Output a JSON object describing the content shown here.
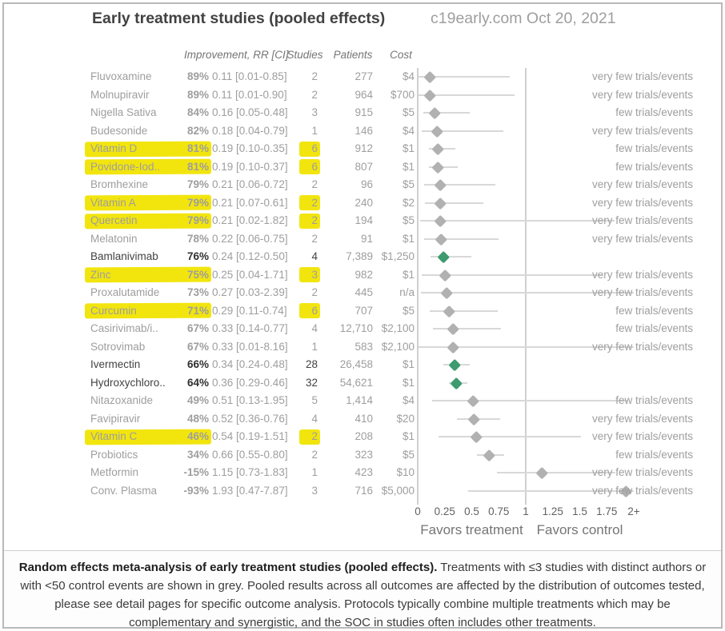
{
  "header": {
    "title": "Early treatment studies (pooled effects)",
    "site_date": "c19early.com Oct 20, 2021"
  },
  "columns": {
    "improvement": "Improvement, RR [CI]",
    "studies": "Studies",
    "patients": "Patients",
    "cost": "Cost"
  },
  "colors": {
    "highlight_yellow": "#f2e50e",
    "diamond_grey": "#b1b1b1",
    "diamond_green": "#3d9b6f",
    "grey_text": "#9e9e9e",
    "dark_text": "#424242"
  },
  "chart_data": {
    "type": "forest",
    "x_ticks": [
      "0",
      "0.25",
      "0.5",
      "0.75",
      "1",
      "1.25",
      "1.5",
      "1.75",
      "2+"
    ],
    "x_range": [
      0,
      2
    ],
    "favors_left": "Favors treatment",
    "favors_right": "Favors control",
    "rows": [
      {
        "name": "Fluvoxamine",
        "pct": "89%",
        "ci": "0.11 [0.01-0.85]",
        "rr": 0.11,
        "lo": 0.01,
        "hi": 0.85,
        "studies": "2",
        "patients": "277",
        "cost": "$4",
        "note": "very few trials/events",
        "hl_name": false,
        "hl_studies": false,
        "dark": false
      },
      {
        "name": "Molnupiravir",
        "pct": "89%",
        "ci": "0.11 [0.01-0.90]",
        "rr": 0.11,
        "lo": 0.01,
        "hi": 0.9,
        "studies": "2",
        "patients": "964",
        "cost": "$700",
        "note": "very few trials/events",
        "hl_name": false,
        "hl_studies": false,
        "dark": false
      },
      {
        "name": "Nigella Sativa",
        "pct": "84%",
        "ci": "0.16 [0.05-0.48]",
        "rr": 0.16,
        "lo": 0.05,
        "hi": 0.48,
        "studies": "3",
        "patients": "915",
        "cost": "$5",
        "note": "few trials/events",
        "hl_name": false,
        "hl_studies": false,
        "dark": false
      },
      {
        "name": "Budesonide",
        "pct": "82%",
        "ci": "0.18 [0.04-0.79]",
        "rr": 0.18,
        "lo": 0.04,
        "hi": 0.79,
        "studies": "1",
        "patients": "146",
        "cost": "$4",
        "note": "very few trials/events",
        "hl_name": false,
        "hl_studies": false,
        "dark": false
      },
      {
        "name": "Vitamin D",
        "pct": "81%",
        "ci": "0.19 [0.10-0.35]",
        "rr": 0.19,
        "lo": 0.1,
        "hi": 0.35,
        "studies": "6",
        "patients": "912",
        "cost": "$1",
        "note": "few trials/events",
        "hl_name": true,
        "hl_studies": true,
        "dark": false
      },
      {
        "name": "Povidone-Iod..",
        "pct": "81%",
        "ci": "0.19 [0.10-0.37]",
        "rr": 0.19,
        "lo": 0.1,
        "hi": 0.37,
        "studies": "6",
        "patients": "807",
        "cost": "$1",
        "note": "few trials/events",
        "hl_name": true,
        "hl_studies": true,
        "dark": false
      },
      {
        "name": "Bromhexine",
        "pct": "79%",
        "ci": "0.21 [0.06-0.72]",
        "rr": 0.21,
        "lo": 0.06,
        "hi": 0.72,
        "studies": "2",
        "patients": "96",
        "cost": "$5",
        "note": "very few trials/events",
        "hl_name": false,
        "hl_studies": false,
        "dark": false
      },
      {
        "name": "Vitamin A",
        "pct": "79%",
        "ci": "0.21 [0.07-0.61]",
        "rr": 0.21,
        "lo": 0.07,
        "hi": 0.61,
        "studies": "2",
        "patients": "240",
        "cost": "$2",
        "note": "very few trials/events",
        "hl_name": true,
        "hl_studies": true,
        "dark": false
      },
      {
        "name": "Quercetin",
        "pct": "79%",
        "ci": "0.21 [0.02-1.82]",
        "rr": 0.21,
        "lo": 0.02,
        "hi": 1.82,
        "studies": "2",
        "patients": "194",
        "cost": "$5",
        "note": "very few trials/events",
        "hl_name": true,
        "hl_studies": true,
        "dark": false
      },
      {
        "name": "Melatonin",
        "pct": "78%",
        "ci": "0.22 [0.06-0.75]",
        "rr": 0.22,
        "lo": 0.06,
        "hi": 0.75,
        "studies": "2",
        "patients": "91",
        "cost": "$1",
        "note": "very few trials/events",
        "hl_name": false,
        "hl_studies": false,
        "dark": false
      },
      {
        "name": "Bamlanivimab",
        "pct": "76%",
        "ci": "0.24 [0.12-0.50]",
        "rr": 0.24,
        "lo": 0.12,
        "hi": 0.5,
        "studies": "4",
        "patients": "7,389",
        "cost": "$1,250",
        "note": "",
        "hl_name": false,
        "hl_studies": false,
        "dark": true
      },
      {
        "name": "Zinc",
        "pct": "75%",
        "ci": "0.25 [0.04-1.71]",
        "rr": 0.25,
        "lo": 0.04,
        "hi": 1.71,
        "studies": "3",
        "patients": "982",
        "cost": "$1",
        "note": "very few trials/events",
        "hl_name": true,
        "hl_studies": true,
        "dark": false
      },
      {
        "name": "Proxalutamide",
        "pct": "73%",
        "ci": "0.27 [0.03-2.39]",
        "rr": 0.27,
        "lo": 0.03,
        "hi": 2.39,
        "studies": "2",
        "patients": "445",
        "cost": "n/a",
        "note": "very few trials/events",
        "hl_name": false,
        "hl_studies": false,
        "dark": false
      },
      {
        "name": "Curcumin",
        "pct": "71%",
        "ci": "0.29 [0.11-0.74]",
        "rr": 0.29,
        "lo": 0.11,
        "hi": 0.74,
        "studies": "6",
        "patients": "707",
        "cost": "$5",
        "note": "few trials/events",
        "hl_name": true,
        "hl_studies": true,
        "dark": false
      },
      {
        "name": "Casirivimab/i..",
        "pct": "67%",
        "ci": "0.33 [0.14-0.77]",
        "rr": 0.33,
        "lo": 0.14,
        "hi": 0.77,
        "studies": "4",
        "patients": "12,710",
        "cost": "$2,100",
        "note": "few trials/events",
        "hl_name": false,
        "hl_studies": false,
        "dark": false
      },
      {
        "name": "Sotrovimab",
        "pct": "67%",
        "ci": "0.33 [0.01-8.16]",
        "rr": 0.33,
        "lo": 0.01,
        "hi": 8.16,
        "studies": "1",
        "patients": "583",
        "cost": "$2,100",
        "note": "very few trials/events",
        "hl_name": false,
        "hl_studies": false,
        "dark": false
      },
      {
        "name": "Ivermectin",
        "pct": "66%",
        "ci": "0.34 [0.24-0.48]",
        "rr": 0.34,
        "lo": 0.24,
        "hi": 0.48,
        "studies": "28",
        "patients": "26,458",
        "cost": "$1",
        "note": "",
        "hl_name": false,
        "hl_studies": false,
        "dark": true
      },
      {
        "name": "Hydroxychloro..",
        "pct": "64%",
        "ci": "0.36 [0.29-0.46]",
        "rr": 0.36,
        "lo": 0.29,
        "hi": 0.46,
        "studies": "32",
        "patients": "54,621",
        "cost": "$1",
        "note": "",
        "hl_name": false,
        "hl_studies": false,
        "dark": true
      },
      {
        "name": "Nitazoxanide",
        "pct": "49%",
        "ci": "0.51 [0.13-1.95]",
        "rr": 0.51,
        "lo": 0.13,
        "hi": 1.95,
        "studies": "5",
        "patients": "1,414",
        "cost": "$4",
        "note": "few trials/events",
        "hl_name": false,
        "hl_studies": false,
        "dark": false
      },
      {
        "name": "Favipiravir",
        "pct": "48%",
        "ci": "0.52 [0.36-0.76]",
        "rr": 0.52,
        "lo": 0.36,
        "hi": 0.76,
        "studies": "4",
        "patients": "410",
        "cost": "$20",
        "note": "very few trials/events",
        "hl_name": false,
        "hl_studies": false,
        "dark": false
      },
      {
        "name": "Vitamin C",
        "pct": "46%",
        "ci": "0.54 [0.19-1.51]",
        "rr": 0.54,
        "lo": 0.19,
        "hi": 1.51,
        "studies": "2",
        "patients": "208",
        "cost": "$1",
        "note": "very few trials/events",
        "hl_name": true,
        "hl_studies": true,
        "dark": false
      },
      {
        "name": "Probiotics",
        "pct": "34%",
        "ci": "0.66 [0.55-0.80]",
        "rr": 0.66,
        "lo": 0.55,
        "hi": 0.8,
        "studies": "2",
        "patients": "323",
        "cost": "$5",
        "note": "few trials/events",
        "hl_name": false,
        "hl_studies": false,
        "dark": false
      },
      {
        "name": "Metformin",
        "pct": "-15%",
        "ci": "1.15 [0.73-1.83]",
        "rr": 1.15,
        "lo": 0.73,
        "hi": 1.83,
        "studies": "1",
        "patients": "423",
        "cost": "$10",
        "note": "very few trials/events",
        "hl_name": false,
        "hl_studies": false,
        "dark": false
      },
      {
        "name": "Conv. Plasma",
        "pct": "-93%",
        "ci": "1.93 [0.47-7.87]",
        "rr": 1.93,
        "lo": 0.47,
        "hi": 7.87,
        "studies": "3",
        "patients": "716",
        "cost": "$5,000",
        "note": "very few trials/events",
        "hl_name": false,
        "hl_studies": false,
        "dark": false
      }
    ]
  },
  "footer": {
    "bold": "Random effects meta-analysis of early treatment studies (pooled effects).",
    "text": " Treatments with ≤3 studies with distinct authors or with <50 control events are shown in grey. Pooled results across all outcomes are affected by the distribution of outcomes tested, please see detail pages for specific outcome analysis. Protocols typically combine multiple treatments which may be complementary and synergistic, and the SOC in studies often includes other treatments."
  }
}
